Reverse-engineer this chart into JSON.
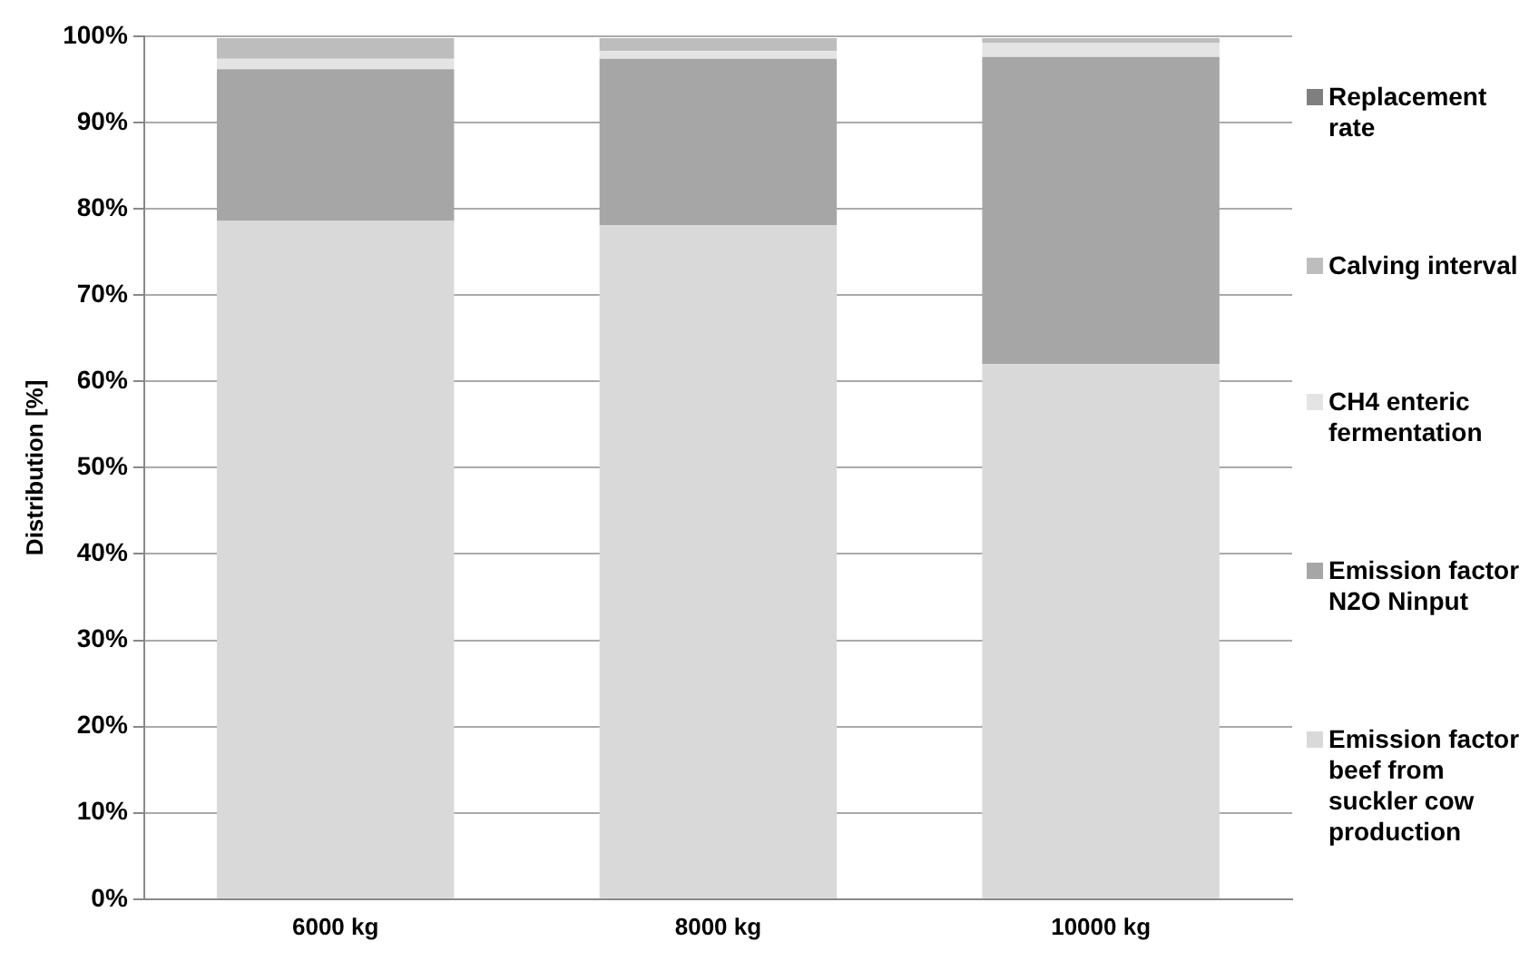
{
  "chart_data": {
    "type": "bar",
    "stacked": true,
    "ylabel": "Distribution [%]",
    "categories": [
      "6000 kg",
      "8000 kg",
      "10000 kg"
    ],
    "series": [
      {
        "name": "Emission factor beef from suckler cow production",
        "color": "#d9d9d9",
        "values": [
          78.6,
          78.1,
          62.0
        ]
      },
      {
        "name": "Emission factor N2O Ninput",
        "color": "#a6a6a6",
        "values": [
          17.6,
          19.3,
          35.6
        ]
      },
      {
        "name": "CH4 enteric fermentation",
        "color": "#e4e4e4",
        "values": [
          1.2,
          0.9,
          1.6
        ]
      },
      {
        "name": "Calving interval",
        "color": "#bdbdbd",
        "values": [
          2.4,
          1.5,
          0.6
        ]
      },
      {
        "name": "Replacement rate",
        "color": "#7f7f7f",
        "values": [
          null,
          null,
          null
        ]
      }
    ],
    "ylim": [
      0,
      100
    ],
    "yticks": [
      {
        "value": 0,
        "label": "0%"
      },
      {
        "value": 10,
        "label": "10%"
      },
      {
        "value": 20,
        "label": "20%"
      },
      {
        "value": 30,
        "label": "30%"
      },
      {
        "value": 40,
        "label": "40%"
      },
      {
        "value": 50,
        "label": "50%"
      },
      {
        "value": 60,
        "label": "60%"
      },
      {
        "value": 70,
        "label": "70%"
      },
      {
        "value": 80,
        "label": "80%"
      },
      {
        "value": 90,
        "label": "90%"
      },
      {
        "value": 100,
        "label": "100%"
      }
    ],
    "grid": "y",
    "legend": "right"
  }
}
